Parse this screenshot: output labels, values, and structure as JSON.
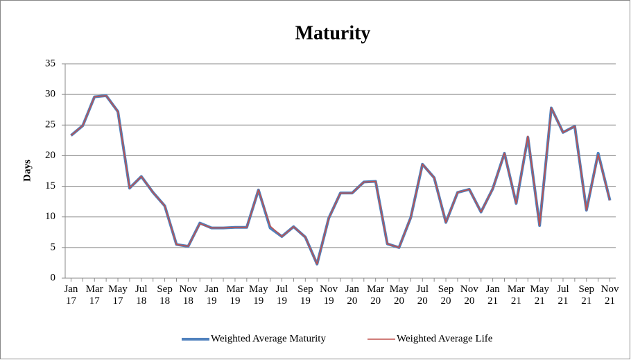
{
  "chart_data": {
    "type": "line",
    "title": "Maturity",
    "y_label": "Days",
    "categories": [
      "Jan 17",
      null,
      "Mar 17",
      null,
      "May 17",
      null,
      "Jul 18",
      null,
      "Sep 18",
      null,
      "Nov 18",
      null,
      "Jan 19",
      null,
      "Mar 19",
      null,
      "May 19",
      null,
      "Jul 19",
      null,
      "Sep 19",
      null,
      "Nov 19",
      null,
      "Jan 20",
      null,
      "Mar 20",
      null,
      "May 20",
      null,
      "Jul 20",
      null,
      "Sep 20",
      null,
      "Nov 20",
      null,
      "Jan 21",
      null,
      "Mar 21",
      null,
      "May 21",
      null,
      "Jul 21",
      null,
      "Sep 21",
      null,
      "Nov 21"
    ],
    "series": [
      {
        "name": "Weighted Average Maturity",
        "color": "#4f81bd",
        "width": 4,
        "values": [
          23.3,
          24.9,
          29.6,
          29.8,
          27.2,
          14.7,
          16.6,
          14.0,
          11.8,
          5.5,
          5.2,
          9.0,
          8.2,
          8.2,
          8.3,
          8.3,
          14.4,
          8.2,
          6.8,
          8.4,
          6.7,
          2.3,
          9.8,
          13.9,
          13.9,
          15.7,
          15.8,
          5.6,
          5.0,
          9.9,
          18.6,
          16.4,
          9.1,
          14.0,
          14.5,
          10.8,
          14.6,
          20.4,
          12.2,
          23.0,
          8.6,
          27.8,
          23.8,
          24.8,
          11.1,
          20.4,
          12.7
        ]
      },
      {
        "name": "Weighted Average Life",
        "color": "#c0504d",
        "width": 1.6,
        "values": [
          23.3,
          24.9,
          29.6,
          29.8,
          27.2,
          14.7,
          16.6,
          14.0,
          11.8,
          5.5,
          5.2,
          8.9,
          8.2,
          8.2,
          8.3,
          8.3,
          14.4,
          8.5,
          6.8,
          8.4,
          6.7,
          2.3,
          9.8,
          13.9,
          13.9,
          15.7,
          15.8,
          5.6,
          5.0,
          9.9,
          18.6,
          16.4,
          9.1,
          14.0,
          14.5,
          10.8,
          14.6,
          20.4,
          12.2,
          23.2,
          8.6,
          27.8,
          23.8,
          24.8,
          11.1,
          20.2,
          12.7
        ]
      }
    ],
    "ylim": [
      0,
      35
    ],
    "yticks": [
      0,
      5,
      10,
      15,
      20,
      25,
      30,
      35
    ],
    "grid": true,
    "legend": "bottom"
  }
}
